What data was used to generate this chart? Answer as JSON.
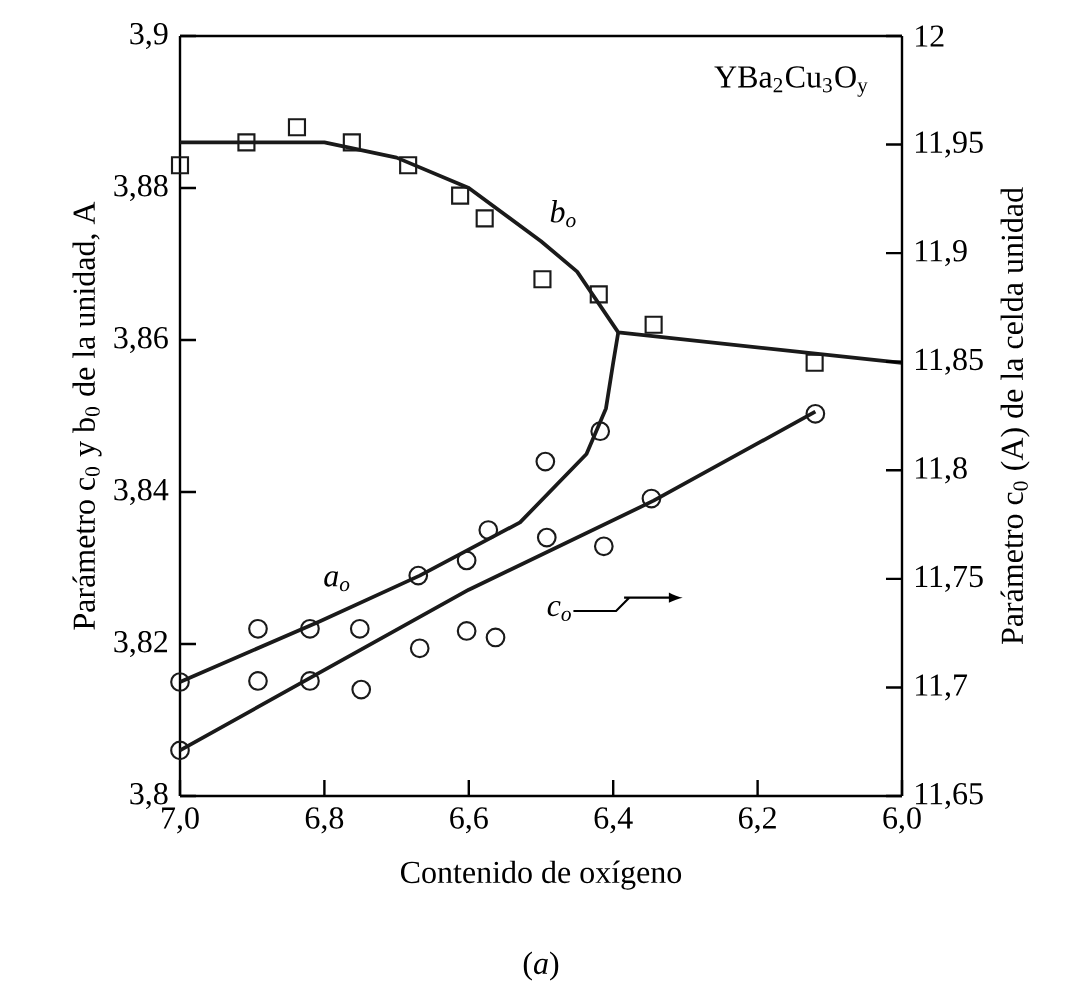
{
  "chart_data": {
    "type": "scatter",
    "xlabel": "Contenido de oxígeno",
    "ylabel": "Parámetro c$_{0}$ y b$_{0}$ de la unidad, A",
    "y2label": "Parámetro c$_{0}$ (A) de la celda unidad",
    "annotations": [
      "YBa$_{2}$Cu$_{3}$O$_{y}$",
      "(*a*)"
    ],
    "xlim": [
      7.0,
      6.0
    ],
    "xticks": [
      {
        "value": 7.0,
        "label": "7,0"
      },
      {
        "value": 6.8,
        "label": "6,8"
      },
      {
        "value": 6.6,
        "label": "6,6"
      },
      {
        "value": 6.4,
        "label": "6,4"
      },
      {
        "value": 6.2,
        "label": "6,2"
      },
      {
        "value": 6.0,
        "label": "6,0"
      }
    ],
    "ylim": [
      3.8,
      3.9
    ],
    "yticks": [
      {
        "value": 3.8,
        "label": "3,8"
      },
      {
        "value": 3.82,
        "label": "3,82"
      },
      {
        "value": 3.84,
        "label": "3,84"
      },
      {
        "value": 3.86,
        "label": "3,86"
      },
      {
        "value": 3.88,
        "label": "3,88"
      },
      {
        "value": 3.9,
        "label": "3,9"
      }
    ],
    "y2lim": [
      11.65,
      12
    ],
    "y2ticks": [
      {
        "value": 11.65,
        "label": "11,65"
      },
      {
        "value": 11.7,
        "label": "11,7"
      },
      {
        "value": 11.75,
        "label": "11,75"
      },
      {
        "value": 11.8,
        "label": "11,8"
      },
      {
        "value": 11.85,
        "label": "11,85"
      },
      {
        "value": 11.9,
        "label": "11,9"
      },
      {
        "value": 11.95,
        "label": "11,95"
      },
      {
        "value": 12,
        "label": "12"
      }
    ],
    "series": [
      {
        "marker": "square",
        "color": "#1a1a1a",
        "x": [
          7.0,
          6.908,
          6.838,
          6.762,
          6.684,
          6.612,
          6.578,
          6.498,
          6.42,
          6.344,
          6.121
        ],
        "values": [
          3.883,
          3.886,
          3.888,
          3.886,
          3.883,
          3.879,
          3.876,
          3.868,
          3.866,
          3.862,
          3.857
        ]
      },
      {
        "type": "line",
        "name": "b$_{o}$",
        "color": "#1a1a1a",
        "x": [
          7.0,
          6.9,
          6.8,
          6.7,
          6.6,
          6.5,
          6.45,
          6.393,
          6.0
        ],
        "values": [
          3.886,
          3.886,
          3.886,
          3.884,
          3.88,
          3.873,
          3.869,
          3.861,
          3.857
        ]
      },
      {
        "marker": "circle",
        "color": "#1a1a1a",
        "x": [
          7.0,
          6.892,
          6.82,
          6.751,
          6.67,
          6.603,
          6.573,
          6.494,
          6.418
        ],
        "values": [
          3.815,
          3.822,
          3.822,
          3.822,
          3.829,
          3.831,
          3.835,
          3.844,
          3.848
        ]
      },
      {
        "type": "line",
        "name": "a$_{o}$",
        "color": "#1a1a1a",
        "x": [
          7.0,
          6.806,
          6.668,
          6.529,
          6.437,
          6.41,
          6.4,
          6.393
        ],
        "values": [
          3.815,
          3.823,
          3.829,
          3.836,
          3.845,
          3.851,
          3.857,
          3.861
        ]
      },
      {
        "marker": "circle",
        "axis": "y2",
        "color": "#1a1a1a",
        "x": [
          7.0,
          6.892,
          6.82,
          6.749,
          6.668,
          6.603,
          6.563,
          6.492,
          6.413,
          6.347,
          6.12
        ],
        "values": [
          11.671,
          11.703,
          11.703,
          11.699,
          11.718,
          11.726,
          11.723,
          11.769,
          11.765,
          11.787,
          11.826
        ]
      },
      {
        "type": "line",
        "name": "c$_{o}$",
        "axis": "y2",
        "color": "#1a1a1a",
        "x": [
          7.0,
          6.6,
          6.344,
          6.12
        ],
        "values": [
          11.671,
          11.745,
          11.786,
          11.827
        ]
      }
    ]
  }
}
